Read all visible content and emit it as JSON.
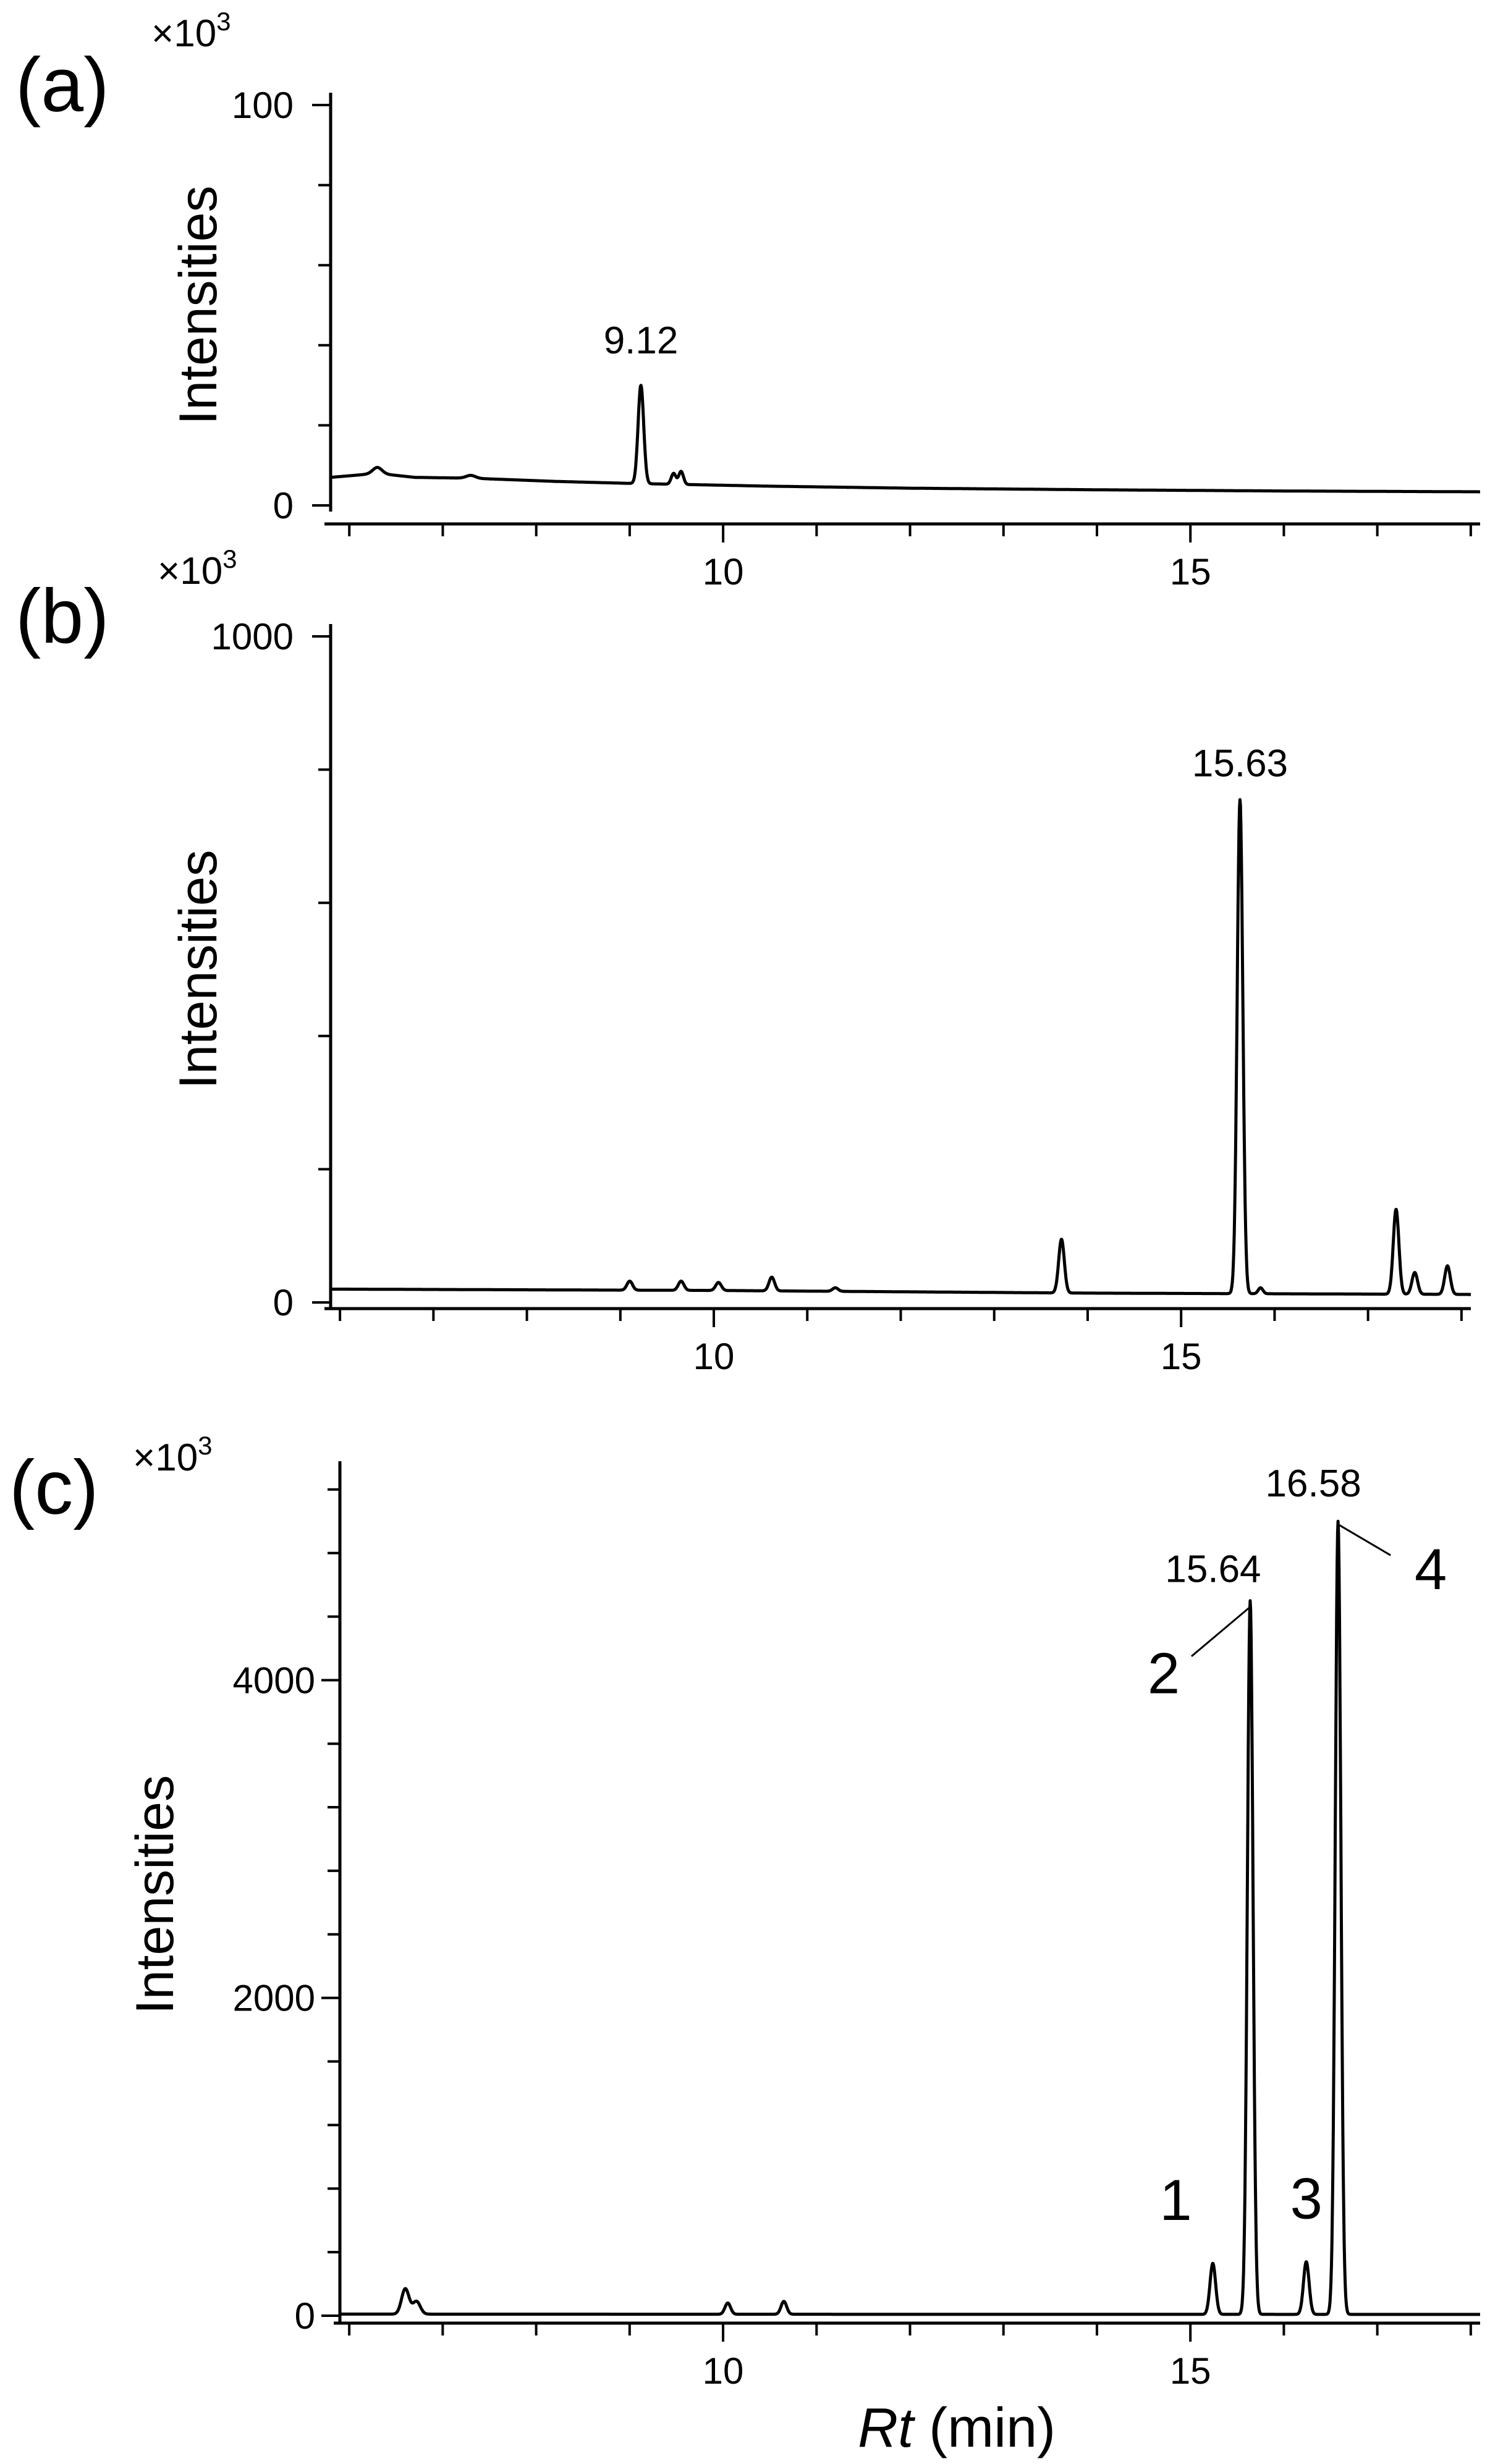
{
  "chart_data": [
    {
      "id": "a",
      "type": "line",
      "panel_label": "(a)",
      "multiplier_base": "×10",
      "multiplier_exponent": "3",
      "ylabel": "Intensities",
      "ylim": [
        0,
        100
      ],
      "y_major_ticks": [
        0,
        100
      ],
      "y_tick_labels": [
        "0",
        "100"
      ],
      "xlim": [
        5.8,
        18.1
      ],
      "x_major_ticks": [
        10,
        15
      ],
      "x_tick_labels": [
        "10",
        "15"
      ],
      "baseline": [
        [
          5.8,
          7
        ],
        [
          6.3,
          8
        ],
        [
          6.7,
          7
        ],
        [
          7.3,
          6.8
        ],
        [
          8.2,
          6
        ],
        [
          9.0,
          5.5
        ],
        [
          10.5,
          4.8
        ],
        [
          12.0,
          4.3
        ],
        [
          14.0,
          3.9
        ],
        [
          16.0,
          3.6
        ],
        [
          18.1,
          3.4
        ]
      ],
      "peaks": [
        {
          "x": 6.3,
          "y": 9.5,
          "w": 0.05
        },
        {
          "x": 7.3,
          "y": 7.5,
          "w": 0.05
        },
        {
          "x": 9.12,
          "y": 30,
          "w": 0.03
        },
        {
          "x": 9.47,
          "y": 8,
          "w": 0.025
        },
        {
          "x": 9.55,
          "y": 8.5,
          "w": 0.025
        }
      ],
      "annotations": [
        {
          "text": "9.12",
          "x": 9.12,
          "y": 38
        }
      ]
    },
    {
      "id": "b",
      "type": "line",
      "panel_label": "(b)",
      "multiplier_base": "×10",
      "multiplier_exponent": "3",
      "ylabel": "Intensities",
      "ylim": [
        0,
        1000
      ],
      "y_major_ticks": [
        0,
        1000
      ],
      "y_tick_labels": [
        "0",
        "1000"
      ],
      "xlim": [
        5.9,
        18.1
      ],
      "x_major_ticks": [
        10,
        15
      ],
      "x_tick_labels": [
        "10",
        "15"
      ],
      "baseline": [
        [
          5.9,
          20
        ],
        [
          10.0,
          18
        ],
        [
          14.0,
          14
        ],
        [
          18.1,
          12
        ]
      ],
      "peaks": [
        {
          "x": 9.1,
          "y": 32,
          "w": 0.03
        },
        {
          "x": 9.65,
          "y": 32,
          "w": 0.03
        },
        {
          "x": 10.05,
          "y": 30,
          "w": 0.03
        },
        {
          "x": 10.62,
          "y": 38,
          "w": 0.03
        },
        {
          "x": 11.3,
          "y": 22,
          "w": 0.03
        },
        {
          "x": 13.72,
          "y": 95,
          "w": 0.03
        },
        {
          "x": 15.63,
          "y": 755,
          "w": 0.03
        },
        {
          "x": 15.85,
          "y": 22,
          "w": 0.025
        },
        {
          "x": 17.3,
          "y": 140,
          "w": 0.03
        },
        {
          "x": 17.5,
          "y": 45,
          "w": 0.03
        },
        {
          "x": 17.85,
          "y": 55,
          "w": 0.03
        }
      ],
      "annotations": [
        {
          "text": "15.63",
          "x": 15.63,
          "y": 790
        }
      ]
    },
    {
      "id": "c",
      "type": "line",
      "panel_label": "(c)",
      "multiplier_base": "×10",
      "multiplier_exponent": "3",
      "ylabel": "Intensities",
      "xlabel_italic": "Rt",
      "xlabel_unit": "(min)",
      "ylim": [
        0,
        5300
      ],
      "y_major_ticks": [
        0,
        2000,
        4000
      ],
      "y_tick_labels": [
        "0",
        "2000",
        "4000"
      ],
      "xlim": [
        5.9,
        18.1
      ],
      "x_major_ticks": [
        10,
        15
      ],
      "x_tick_labels": [
        "10",
        "15"
      ],
      "baseline": [
        [
          5.9,
          10
        ],
        [
          18.1,
          8
        ]
      ],
      "peaks": [
        {
          "x": 6.6,
          "y": 170,
          "w": 0.04
        },
        {
          "x": 6.72,
          "y": 90,
          "w": 0.04
        },
        {
          "x": 10.05,
          "y": 80,
          "w": 0.03
        },
        {
          "x": 10.65,
          "y": 90,
          "w": 0.03
        },
        {
          "x": 15.24,
          "y": 330,
          "w": 0.03
        },
        {
          "x": 15.64,
          "y": 4500,
          "w": 0.03
        },
        {
          "x": 16.24,
          "y": 340,
          "w": 0.03
        },
        {
          "x": 16.58,
          "y": 5000,
          "w": 0.03
        }
      ],
      "annotations": [
        {
          "text": "15.64",
          "x": 15.64
        },
        {
          "text": "16.58",
          "x": 16.58
        }
      ],
      "peak_numbers": [
        {
          "text": "1",
          "x": 15.24
        },
        {
          "text": "2",
          "x": 15.64
        },
        {
          "text": "3",
          "x": 16.24
        },
        {
          "text": "4",
          "x": 16.58
        }
      ]
    }
  ]
}
